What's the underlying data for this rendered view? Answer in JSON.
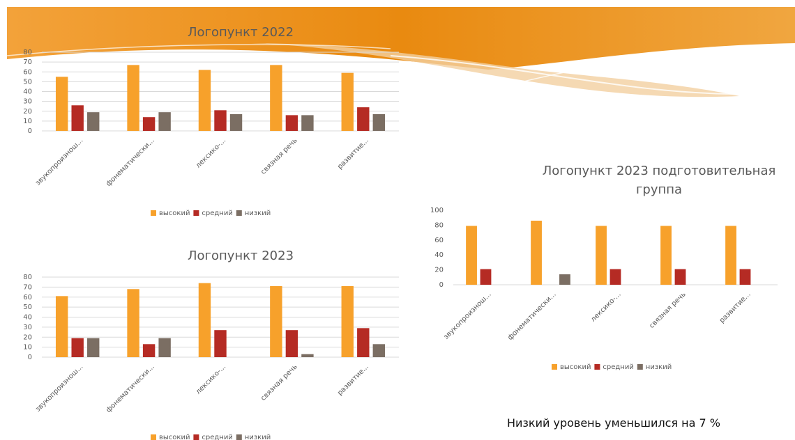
{
  "chart_data": [
    {
      "type": "bar",
      "title": "Логопункт 2022",
      "categories": [
        "звукопроизнош...",
        "фонематически...",
        "лексико-...",
        "связная речь",
        "развитие..."
      ],
      "series": [
        {
          "name": "высокий",
          "color": "#f7a12b",
          "values": [
            55,
            67,
            62,
            67,
            59
          ]
        },
        {
          "name": "средний",
          "color": "#b52b24",
          "values": [
            26,
            14,
            21,
            16,
            24
          ]
        },
        {
          "name": "низкий",
          "color": "#7b6e63",
          "values": [
            19,
            19,
            17,
            16,
            17
          ]
        }
      ],
      "ylim": [
        0,
        80
      ],
      "yticks": [
        0,
        10,
        20,
        30,
        40,
        50,
        60,
        70,
        80
      ],
      "grid": true,
      "legend": "bottom"
    },
    {
      "type": "bar",
      "title": "Логопункт 2023",
      "categories": [
        "звукопроизнош...",
        "фонематически...",
        "лексико-...",
        "связная речь",
        "развитие..."
      ],
      "series": [
        {
          "name": "высокий",
          "color": "#f7a12b",
          "values": [
            61,
            68,
            74,
            71,
            71
          ]
        },
        {
          "name": "средний",
          "color": "#b52b24",
          "values": [
            19,
            13,
            27,
            27,
            29
          ]
        },
        {
          "name": "низкий",
          "color": "#7b6e63",
          "values": [
            19,
            19,
            0,
            3,
            13
          ]
        }
      ],
      "ylim": [
        0,
        80
      ],
      "yticks": [
        0,
        10,
        20,
        30,
        40,
        50,
        60,
        70,
        80
      ],
      "grid": true,
      "legend": "bottom"
    },
    {
      "type": "bar",
      "title": "Логопункт 2023 подготовительная группа",
      "categories": [
        "звукопроизнош...",
        "фонематически...",
        "лексико-...",
        "связная речь",
        "развитие..."
      ],
      "series": [
        {
          "name": "высокий",
          "color": "#f7a12b",
          "values": [
            79,
            86,
            79,
            79,
            79
          ]
        },
        {
          "name": "средний",
          "color": "#b52b24",
          "values": [
            21,
            0,
            21,
            21,
            21
          ]
        },
        {
          "name": "низкий",
          "color": "#7b6e63",
          "values": [
            0,
            14,
            0,
            0,
            0
          ]
        }
      ],
      "ylim": [
        0,
        100
      ],
      "yticks": [
        0,
        20,
        40,
        60,
        80,
        100
      ],
      "grid": false,
      "legend": "bottom"
    }
  ],
  "caption": "Низкий уровень уменьшился на 7 %"
}
